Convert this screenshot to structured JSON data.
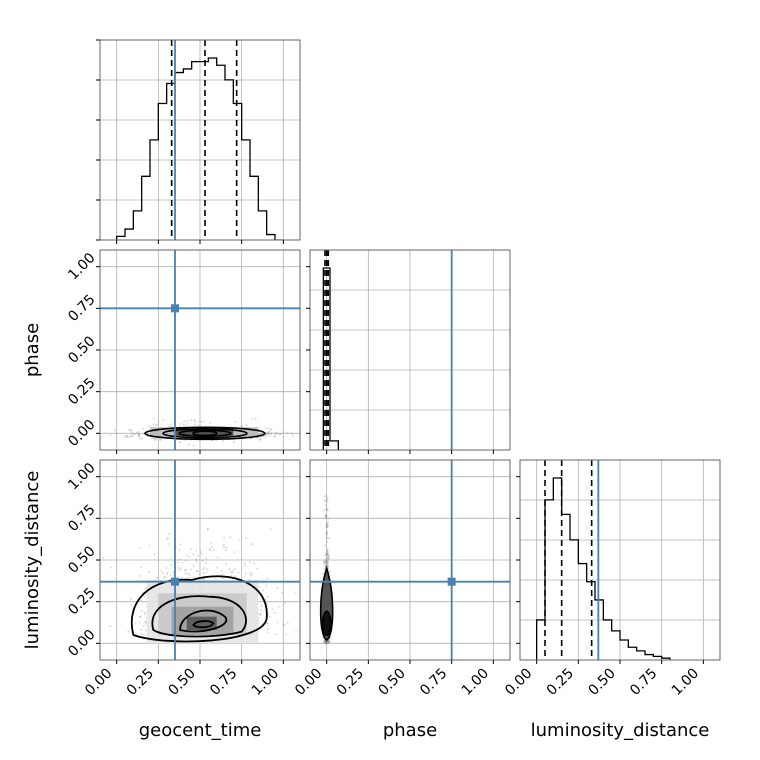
{
  "chart_data": {
    "type": "corner",
    "parameters": [
      "geocent_time",
      "phase",
      "luminosity_distance"
    ],
    "axis_labels": {
      "x": [
        "geocent_time",
        "phase",
        "luminosity_distance"
      ],
      "y": [
        "phase",
        "luminosity_distance"
      ]
    },
    "tick_labels": [
      "0.00",
      "0.25",
      "0.50",
      "0.75",
      "1.00"
    ],
    "ticks": [
      0,
      0.25,
      0.5,
      0.75,
      1.0
    ],
    "xlim": [
      -0.1,
      1.1
    ],
    "grid": true,
    "colors": {
      "truth": "#4682b4",
      "hist": "#000000",
      "scatter": "#888888"
    },
    "truth_values": {
      "geocent_time": 0.35,
      "phase": 0.75,
      "luminosity_distance": 0.37
    },
    "histograms": {
      "geocent_time": {
        "bin_edges": [
          0.0,
          0.05,
          0.1,
          0.15,
          0.2,
          0.25,
          0.3,
          0.35,
          0.4,
          0.45,
          0.5,
          0.55,
          0.6,
          0.65,
          0.7,
          0.75,
          0.8,
          0.85,
          0.9,
          0.95,
          1.0
        ],
        "counts": [
          0.02,
          0.06,
          0.16,
          0.35,
          0.55,
          0.75,
          0.86,
          0.92,
          0.94,
          0.98,
          0.98,
          1.0,
          0.96,
          0.88,
          0.75,
          0.55,
          0.35,
          0.16,
          0.03,
          0.0
        ],
        "quantiles": [
          0.33,
          0.53,
          0.72
        ]
      },
      "phase": {
        "bin_edges": [
          -0.02,
          0.02,
          0.07
        ],
        "counts": [
          1.0,
          0.05
        ],
        "quantiles": [
          -0.01,
          0.0,
          0.01
        ]
      },
      "luminosity_distance": {
        "bin_edges": [
          0.0,
          0.05,
          0.1,
          0.15,
          0.2,
          0.25,
          0.3,
          0.35,
          0.4,
          0.45,
          0.5,
          0.55,
          0.6,
          0.65,
          0.7,
          0.75,
          0.8
        ],
        "counts": [
          0.22,
          0.88,
          1.0,
          0.8,
          0.66,
          0.53,
          0.43,
          0.33,
          0.22,
          0.16,
          0.11,
          0.07,
          0.05,
          0.03,
          0.02,
          0.01
        ],
        "quantiles": [
          0.05,
          0.15,
          0.33
        ]
      }
    },
    "joint_summaries": {
      "geocent_time_vs_phase": {
        "center": [
          0.53,
          0.0
        ],
        "x_spread": 0.45,
        "y_spread": 0.02
      },
      "geocent_time_vs_luminosity_distance": {
        "center": [
          0.53,
          0.12
        ],
        "x_spread": 0.4,
        "y_spread": 0.25
      },
      "phase_vs_luminosity_distance": {
        "center": [
          0.0,
          0.12
        ],
        "x_spread": 0.01,
        "y_spread": 0.3
      }
    }
  }
}
